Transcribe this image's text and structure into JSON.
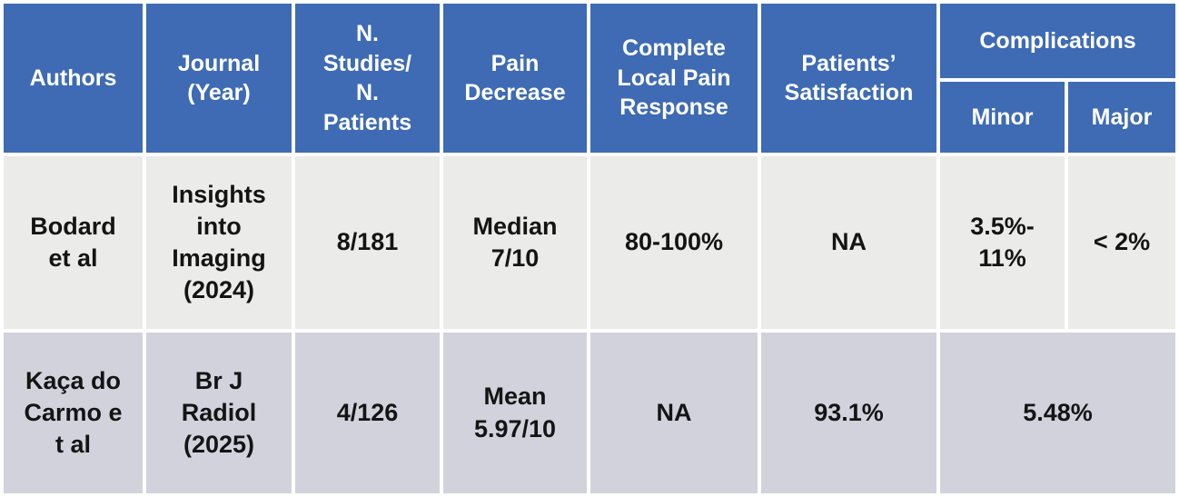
{
  "table": {
    "headers": {
      "authors": "Authors",
      "journal": "Journal\n(Year)",
      "n_studies": "N.\nStudies/\nN.\nPatients",
      "pain_decrease": "Pain\nDecrease",
      "complete_response": "Complete\nLocal Pain\nResponse",
      "satisfaction": "Patients’\nSatisfaction",
      "complications": "Complications",
      "minor": "Minor",
      "major": "Major"
    },
    "rows": [
      {
        "authors": "Bodard\net al",
        "journal": "Insights\ninto\nImaging\n(2024)",
        "n_studies": "8/181",
        "pain_decrease": "Median\n7/10",
        "complete_response": "80-100%",
        "satisfaction": "NA",
        "minor": "3.5%-\n11%",
        "major": "< 2%"
      },
      {
        "authors": "Kaça do\nCarmo e\nt al",
        "journal": "Br J\nRadiol\n(2025)",
        "n_studies": "4/126",
        "pain_decrease": "Mean\n5.97/10",
        "complete_response": "NA",
        "satisfaction": "93.1%",
        "complications": "5.48%"
      }
    ],
    "colors": {
      "header_bg": "#3e6bb3",
      "header_text": "#ffffff",
      "row1_bg": "#ebebe9",
      "row2_bg": "#d2d2dd",
      "body_text": "#141414",
      "divider": "#ffffff"
    }
  }
}
